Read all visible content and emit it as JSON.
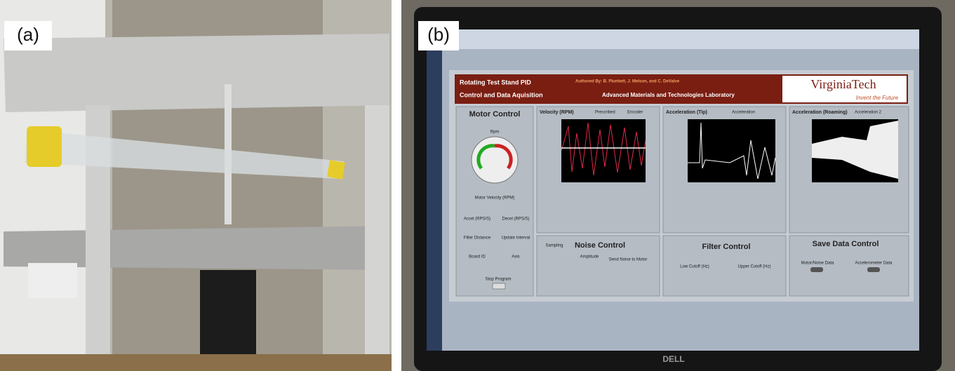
{
  "panel_a": {
    "label": "(a)"
  },
  "panel_b": {
    "label": "(b)",
    "header": {
      "title_line1": "Rotating Test Stand PID",
      "title_line2": "Control and Data Aquisition",
      "authors": "Authored By: B. Plunkett, J. Melson, and C. DeValve",
      "lab": "Advanced Materials and Technologies Laboratory",
      "university": "VirginiaTech",
      "slogan": "Invent the Future"
    },
    "motor_control": {
      "title": "Motor Control",
      "gauge": "Rpm",
      "velocity": "Motor Velocity (RPM)",
      "accel": "Accel (RPS/S)",
      "decel": "Decel (RPS/S)",
      "filter_distance": "Filter Distance",
      "update_interval": "Update Interval",
      "board_id": "Board ID",
      "axis": "Axis",
      "stop": "Stop Program"
    },
    "plots": [
      {
        "title": "Velocity (RPM)",
        "legend": [
          "Prescribed",
          "Encoder"
        ]
      },
      {
        "title": "Acceleration (Tip)",
        "legend": [
          "Acceleration"
        ]
      },
      {
        "title": "Acceleration (Roaming)",
        "legend": [
          "Acceleration 2"
        ]
      }
    ],
    "noise_control": {
      "title": "Noise Control",
      "sampling": "Sampling",
      "amplitude": "Amplitude",
      "send": "Send Noise to Motor"
    },
    "filter_control": {
      "title": "Filter Control",
      "low": "Low Cutoff (Hz)",
      "upper": "Upper Cutoff (Hz)"
    },
    "save_data_control": {
      "title": "Save Data Control",
      "motor": "Motor/Noise Data",
      "accel": "Accelerometer Data"
    },
    "brand": "DELL"
  }
}
